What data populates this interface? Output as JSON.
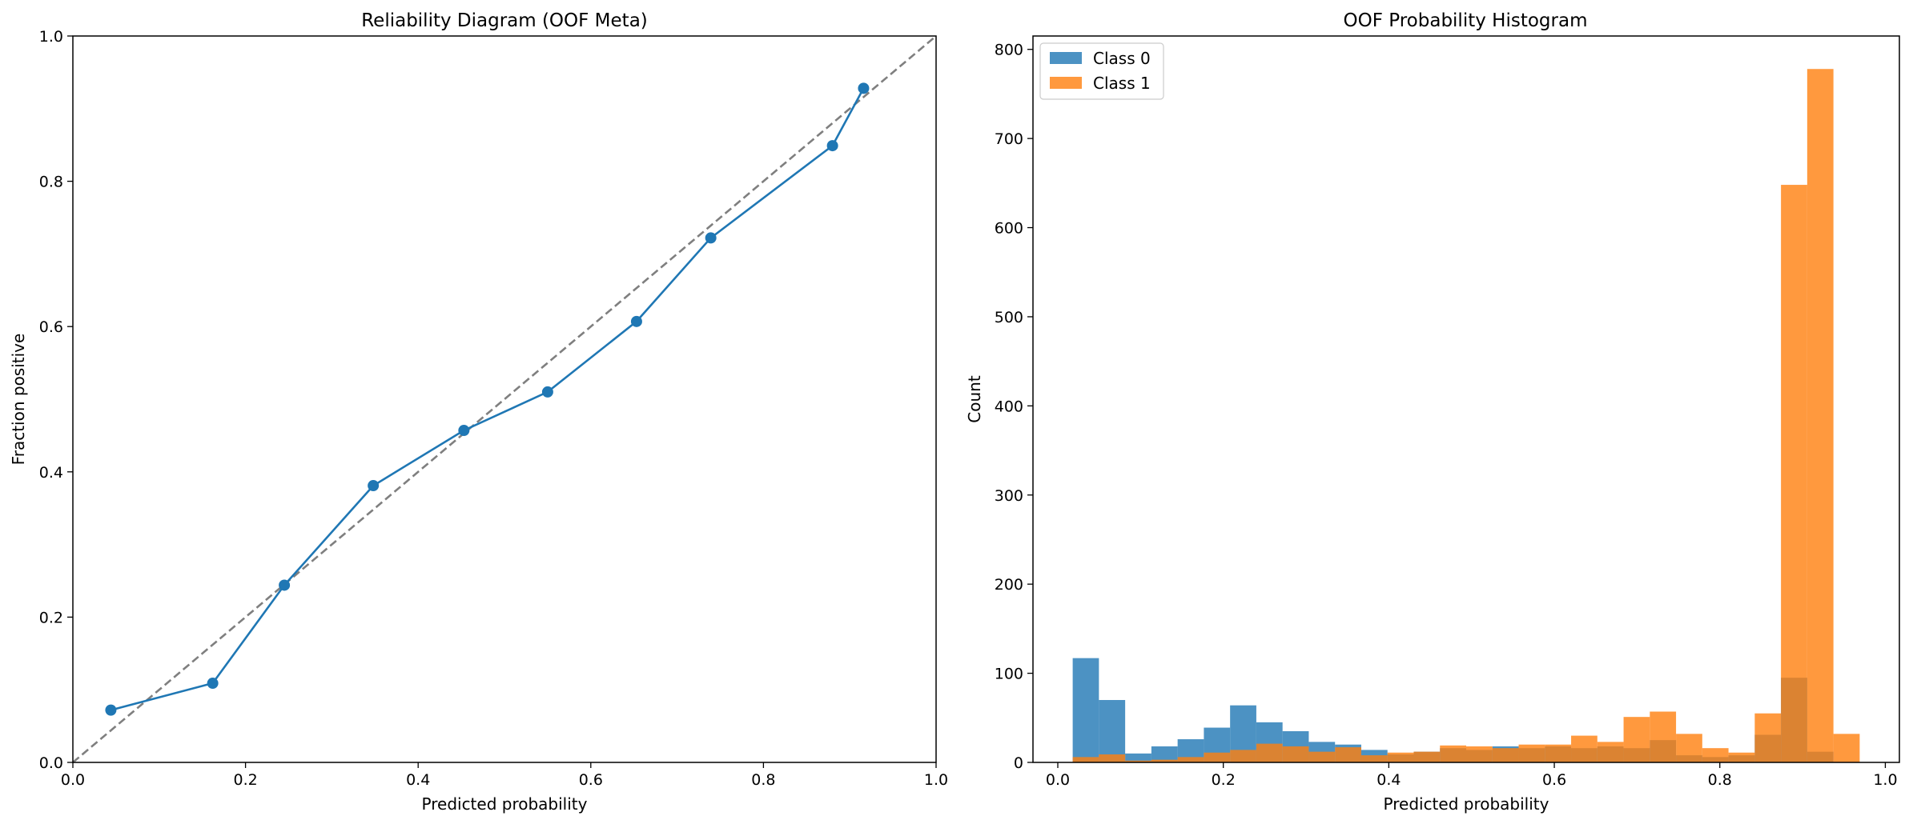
{
  "chart_data": [
    {
      "type": "line",
      "title": "Reliability Diagram (OOF Meta)",
      "xlabel": "Predicted probability",
      "ylabel": "Fraction positive",
      "xlim": [
        0.0,
        1.0
      ],
      "ylim": [
        0.0,
        1.0
      ],
      "xticks": [
        "0.0",
        "0.2",
        "0.4",
        "0.6",
        "0.8",
        "1.0"
      ],
      "yticks": [
        "0.0",
        "0.2",
        "0.4",
        "0.6",
        "0.8",
        "1.0"
      ],
      "grid": false,
      "series": [
        {
          "name": "OOF Meta",
          "color": "#1f77b4",
          "marker": "circle",
          "x": [
            0.044,
            0.162,
            0.245,
            0.348,
            0.453,
            0.55,
            0.653,
            0.739,
            0.88,
            0.916
          ],
          "y": [
            0.072,
            0.109,
            0.244,
            0.381,
            0.457,
            0.51,
            0.607,
            0.722,
            0.849,
            0.928
          ]
        }
      ],
      "reference_line": {
        "name": "Perfectly calibrated",
        "style": "dashed",
        "color": "#7f7f7f",
        "x": [
          0.0,
          1.0
        ],
        "y": [
          0.0,
          1.0
        ]
      }
    },
    {
      "type": "bar",
      "title": "OOF Probability Histogram",
      "xlabel": "Predicted probability",
      "ylabel": "Count",
      "xlim": [
        -0.03,
        1.017
      ],
      "ylim": [
        0,
        815
      ],
      "xticks": [
        "0.0",
        "0.2",
        "0.4",
        "0.6",
        "0.8",
        "1.0"
      ],
      "yticks": [
        "0",
        "100",
        "200",
        "300",
        "400",
        "500",
        "600",
        "700",
        "800"
      ],
      "legend": "top-left",
      "bin_start": 0.018,
      "bin_width": 0.0317,
      "series": [
        {
          "name": "Class 0",
          "color": "#1f77b4",
          "values": [
            117,
            70,
            10,
            18,
            26,
            39,
            64,
            45,
            35,
            23,
            20,
            14,
            9,
            12,
            16,
            14,
            18,
            16,
            18,
            16,
            18,
            16,
            25,
            8,
            6,
            8,
            31,
            95,
            12,
            0
          ]
        },
        {
          "name": "Class 1",
          "color": "#ff7f0e",
          "values": [
            6,
            9,
            2,
            3,
            6,
            11,
            14,
            21,
            18,
            12,
            17,
            8,
            11,
            12,
            19,
            18,
            16,
            20,
            20,
            30,
            23,
            51,
            57,
            32,
            16,
            11,
            55,
            648,
            778,
            32
          ]
        }
      ]
    }
  ]
}
